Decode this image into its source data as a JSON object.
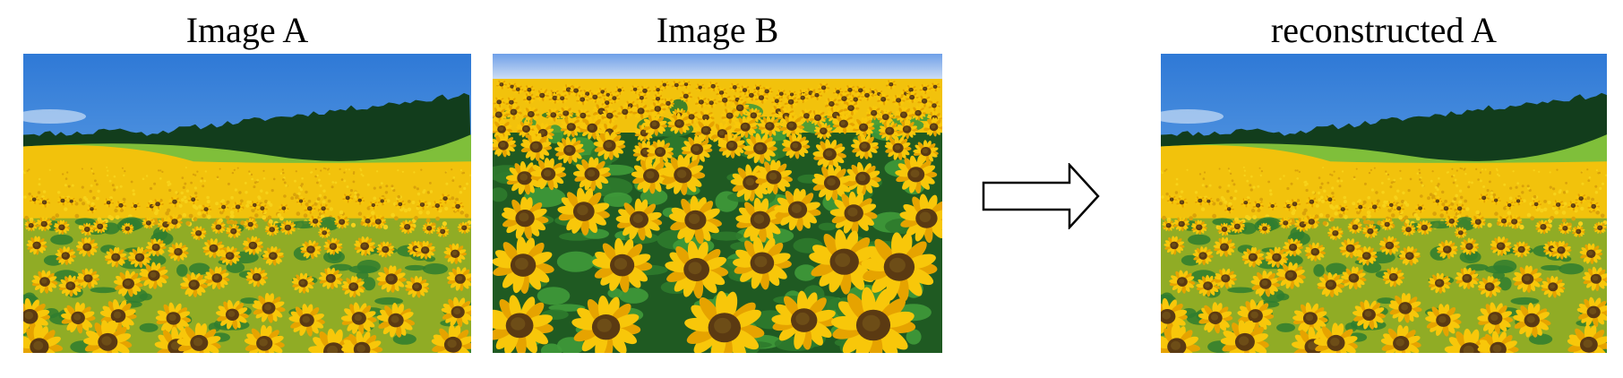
{
  "panels": {
    "image_a": {
      "title": "Image A",
      "scene": "sunflower-field-with-hills"
    },
    "image_b": {
      "title": "Image B",
      "scene": "sunflower-closeup-field"
    },
    "reconstructed": {
      "title": "reconstructed A",
      "scene": "sunflower-field-with-hills"
    }
  },
  "arrow": {
    "icon": "right-arrow-icon"
  },
  "colors": {
    "sky": "#2f79d6",
    "sky_light": "#8cc3f2",
    "forest": "#123d1c",
    "grass": "#3f9a3a",
    "field_yellow": "#f2c20c",
    "petal": "#f8c70a",
    "petal_dark": "#e6a300",
    "center": "#5b3a12",
    "leaf": "#2f7d2f",
    "recon_sky": "#6f8ff0"
  }
}
